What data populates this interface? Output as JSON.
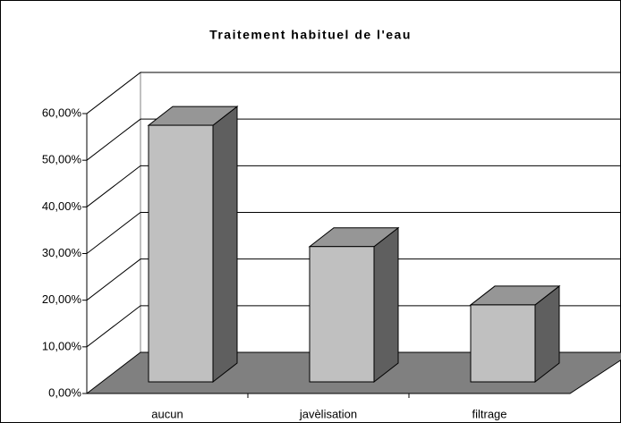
{
  "chart_data": {
    "type": "bar3d",
    "title": "Traitement habituel de l'eau",
    "categories": [
      "aucun",
      "javèlisation",
      "filtrage"
    ],
    "values": [
      55,
      29,
      16.5
    ],
    "ylim": [
      0,
      60
    ],
    "yticks": [
      {
        "value": 0,
        "label": "0,00%"
      },
      {
        "value": 10,
        "label": "10,00%"
      },
      {
        "value": 20,
        "label": "20,00%"
      },
      {
        "value": 30,
        "label": "30,00%"
      },
      {
        "value": 40,
        "label": "40,00%"
      },
      {
        "value": 50,
        "label": "50,00%"
      },
      {
        "value": 60,
        "label": "60,00%"
      }
    ],
    "grid": true,
    "colors": {
      "front": "#c0c0c0",
      "top": "#969696",
      "side": "#5f5f5f",
      "floor": "#808080"
    }
  }
}
